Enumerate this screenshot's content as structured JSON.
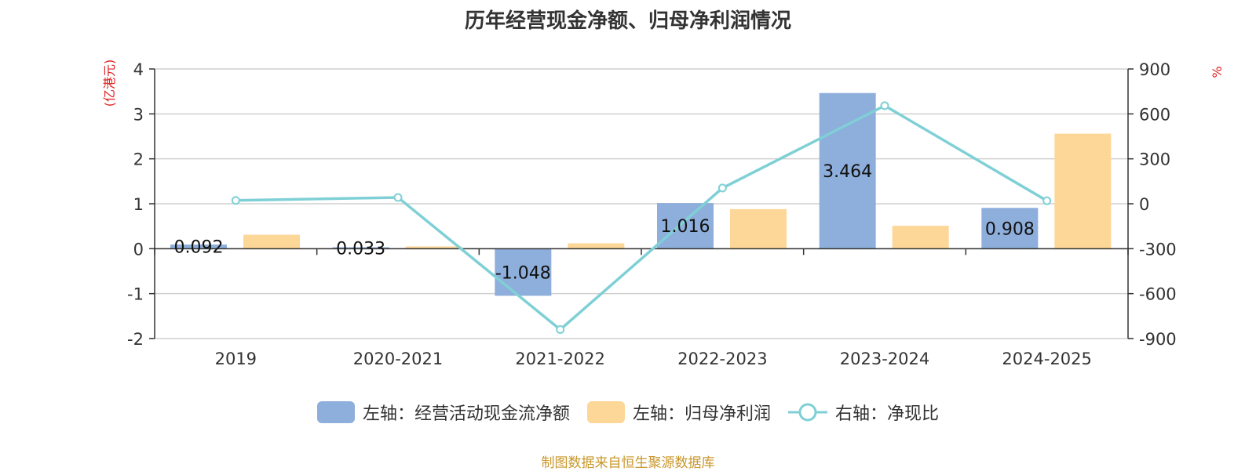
{
  "chart_data": {
    "type": "bar",
    "title": "历年经营现金净额、归母净利润情况",
    "categories": [
      "2019",
      "2020-2021",
      "2021-2022",
      "2022-2023",
      "2023-2024",
      "2024-2025"
    ],
    "left_axis": {
      "unit": "(亿港元)",
      "ylim": [
        -2,
        4
      ],
      "ticks": [
        "4",
        "3",
        "2",
        "1",
        "0",
        "-1",
        "-2"
      ],
      "tick_values": [
        4,
        3,
        2,
        1,
        0,
        -1,
        -2
      ]
    },
    "right_axis": {
      "unit": "%",
      "ylim": [
        -900,
        900
      ],
      "ticks": [
        "900",
        "600",
        "300",
        "0",
        "-300",
        "-600",
        "-900"
      ],
      "tick_values": [
        900,
        600,
        300,
        0,
        -300,
        -600,
        -900
      ]
    },
    "series": [
      {
        "name": "左轴：经营活动现金流净额",
        "kind": "bar",
        "axis": "left",
        "color": "#8eaedb",
        "values": [
          0.092,
          0.033,
          -1.048,
          1.016,
          3.464,
          0.908
        ],
        "labels": [
          "0.092",
          "0.033",
          "-1.048",
          "1.016",
          "3.464",
          "0.908"
        ]
      },
      {
        "name": "左轴：归母净利润",
        "kind": "bar",
        "axis": "left",
        "color": "#fdd797",
        "values": [
          0.31,
          0.05,
          0.12,
          0.88,
          0.51,
          2.56
        ]
      },
      {
        "name": "右轴：净现比",
        "kind": "line",
        "axis": "right",
        "color": "#7fd0d6",
        "values": [
          22,
          42,
          -840,
          105,
          655,
          20
        ]
      }
    ],
    "grid": true,
    "legend_position": "bottom"
  },
  "source_note": "制图数据来自恒生聚源数据库"
}
